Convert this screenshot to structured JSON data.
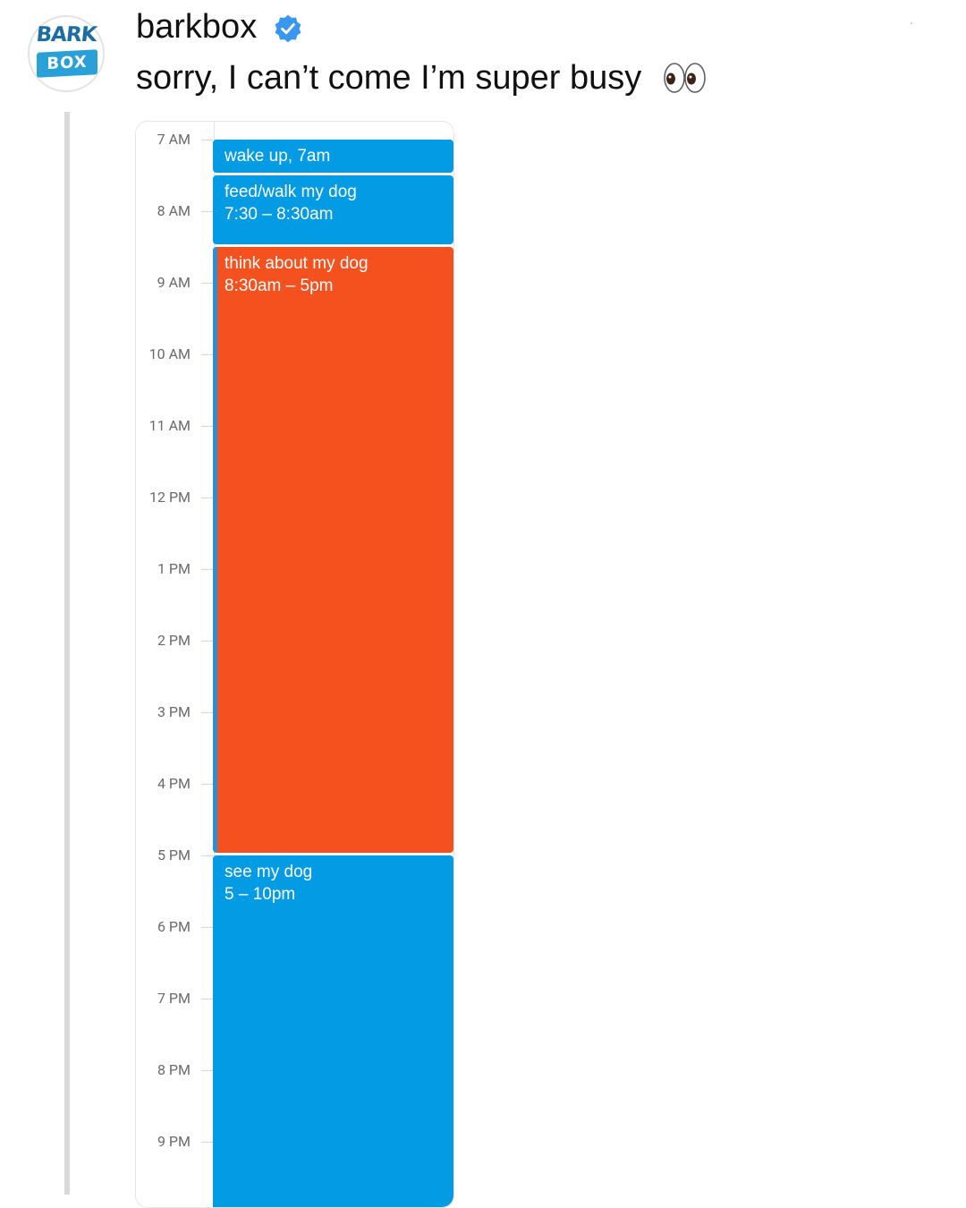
{
  "post": {
    "username": "barkbox",
    "verified_icon": "verified-badge-icon",
    "caption": "sorry, I can’t come I’m super busy",
    "caption_emoji": "eyes-emoji"
  },
  "avatar": {
    "logo_top": "BARK",
    "logo_bottom": "BOX",
    "brand_color": "#2aa0d8"
  },
  "calendar": {
    "hours": [
      "7 AM",
      "8 AM",
      "9 AM",
      "10 AM",
      "11 AM",
      "12 PM",
      "1 PM",
      "2 PM",
      "3 PM",
      "4 PM",
      "5 PM",
      "6 PM",
      "7 PM",
      "8 PM",
      "9 PM"
    ],
    "events": [
      {
        "title": "wake up, 7am",
        "time": "",
        "color": "#049be5"
      },
      {
        "title": "feed/walk my dog",
        "time": "7:30 – 8:30am",
        "color": "#049be5"
      },
      {
        "title": "think about my dog",
        "time": "8:30am – 5pm",
        "color": "#f4511e"
      },
      {
        "title": "see my dog",
        "time": "5 – 10pm",
        "color": "#049be5"
      }
    ]
  }
}
